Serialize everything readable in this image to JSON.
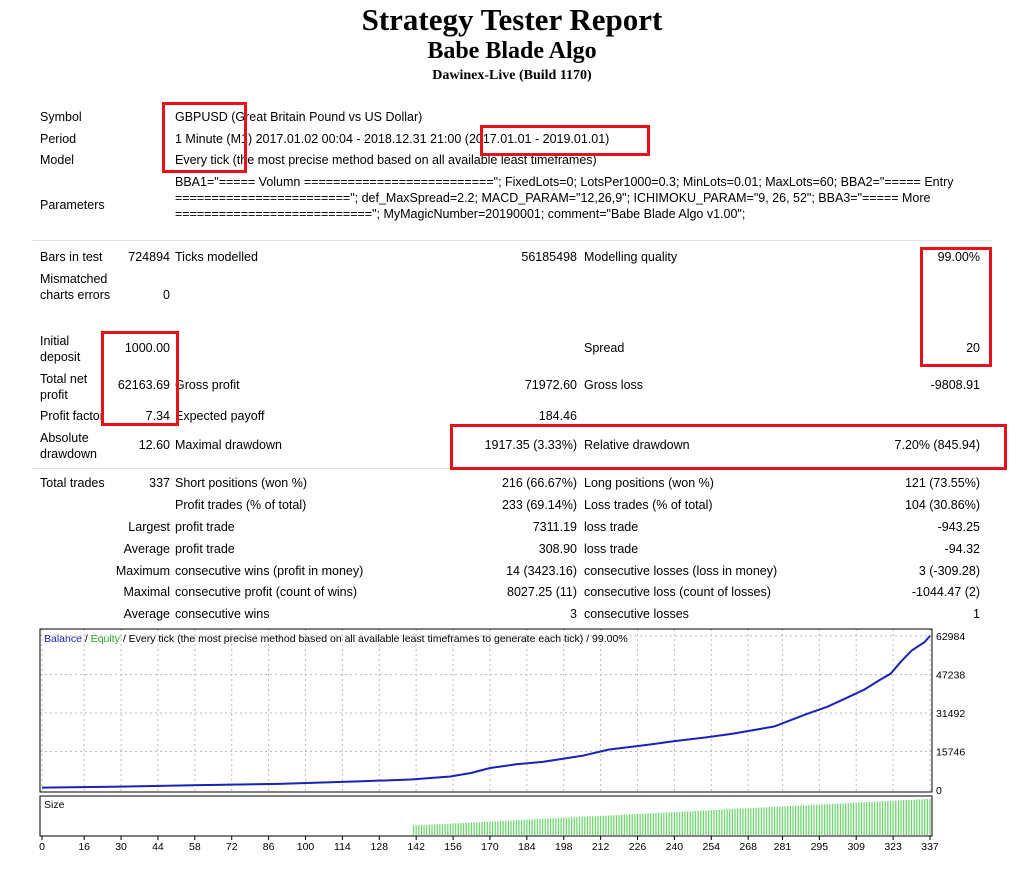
{
  "header": {
    "title": "Strategy Tester Report",
    "subtitle": "Babe Blade Algo",
    "server": "Dawinex-Live (Build 1170)"
  },
  "settings": {
    "symbol_label": "Symbol",
    "symbol_value": "GBPUSD (Great Britain Pound vs US Dollar)",
    "period_label": "Period",
    "period_value": "1 Minute (M1) 2017.01.02 00:04 - 2018.12.31 21:00 (2017.01.01 - 2019.01.01)",
    "model_label": "Model",
    "model_value": "Every tick (the most precise method based on all available least timeframes)",
    "parameters_label": "Parameters",
    "parameters_value": "BBA1=\"===== Volumn ==========================\"; FixedLots=0; LotsPer1000=0.3; MinLots=0.01; MaxLots=60; BBA2=\"===== Entry ========================\"; def_MaxSpread=2.2; MACD_PARAM=\"12,26,9\"; ICHIMOKU_PARAM=\"9, 26, 52\"; BBA3=\"===== More ===========================\"; MyMagicNumber=20190001; comment=\"Babe Blade Algo v1.00\";"
  },
  "stats": {
    "bars_label": "Bars in test",
    "bars_value": "724894",
    "ticks_label": "Ticks modelled",
    "ticks_value": "56185498",
    "quality_label": "Modelling quality",
    "quality_value": "99.00%",
    "mismatch_label": "Mismatched charts errors",
    "mismatch_value": "0",
    "deposit_label": "Initial deposit",
    "deposit_value": "1000.00",
    "spread_label": "Spread",
    "spread_value": "20",
    "netprofit_label": "Total net profit",
    "netprofit_value": "62163.69",
    "grossprofit_label": "Gross profit",
    "grossprofit_value": "71972.60",
    "grossloss_label": "Gross loss",
    "grossloss_value": "-9808.91",
    "pf_label": "Profit factor",
    "pf_value": "7.34",
    "payoff_label": "Expected payoff",
    "payoff_value": "184.46",
    "absdd_label": "Absolute drawdown",
    "absdd_value": "12.60",
    "maxdd_label": "Maximal drawdown",
    "maxdd_value": "1917.35 (3.33%)",
    "reldd_label": "Relative drawdown",
    "reldd_value": "7.20% (845.94)"
  },
  "trades": {
    "total_label": "Total trades",
    "total_value": "337",
    "short_label": "Short positions (won %)",
    "short_value": "216 (66.67%)",
    "long_label": "Long positions (won %)",
    "long_value": "121 (73.55%)",
    "profit_label": "Profit trades (% of total)",
    "profit_value": "233 (69.14%)",
    "loss_label": "Loss trades (% of total)",
    "loss_value": "104 (30.86%)",
    "largest_label": "Largest",
    "lp_label": "profit trade",
    "lp_value": "7311.19",
    "ll_label": "loss trade",
    "ll_value": "-943.25",
    "average_label": "Average",
    "ap_label": "profit trade",
    "ap_value": "308.90",
    "al_label": "loss trade",
    "al_value": "-94.32",
    "maximum_label": "Maximum",
    "mcw_label": "consecutive wins (profit in money)",
    "mcw_value": "14 (3423.16)",
    "mcl_label": "consecutive losses (loss in money)",
    "mcl_value": "3 (-309.28)",
    "maximal_label": "Maximal",
    "mcp_label": "consecutive profit (count of wins)",
    "mcp_value": "8027.25 (11)",
    "mcll_label": "consecutive loss (count of losses)",
    "mcll_value": "-1044.47 (2)",
    "average2_label": "Average",
    "acw_label": "consecutive wins",
    "acw_value": "3",
    "acl_label": "consecutive losses",
    "acl_value": "1"
  },
  "chart_data": {
    "type": "line",
    "legend_balance": "Balance",
    "legend_sep": " / ",
    "legend_equity": "Equity",
    "legend_rest": " / Every tick (the most precise method based on all available least timeframes to generate each tick) / 99.00%",
    "size_label": "Size",
    "colors": {
      "balance": "#1a23b8",
      "equity": "#22a822",
      "size": "#6fd66f"
    },
    "y_ticks": [
      "62984",
      "47238",
      "31492",
      "15746",
      "0"
    ],
    "ylim": [
      0,
      65000
    ],
    "x_ticks": [
      "0",
      "16",
      "30",
      "44",
      "58",
      "72",
      "86",
      "100",
      "114",
      "128",
      "142",
      "156",
      "170",
      "184",
      "198",
      "212",
      "226",
      "240",
      "254",
      "268",
      "281",
      "295",
      "309",
      "323",
      "337"
    ],
    "xlim": [
      0,
      337
    ],
    "series": [
      {
        "name": "Balance",
        "x": [
          0,
          30,
          60,
          90,
          120,
          140,
          155,
          163,
          170,
          180,
          190,
          205,
          215,
          230,
          240,
          252,
          262,
          270,
          278,
          284,
          290,
          298,
          305,
          312,
          318,
          322,
          326,
          330,
          335,
          337
        ],
        "values": [
          1000,
          1400,
          2000,
          2500,
          3500,
          4300,
          5500,
          7000,
          9000,
          10500,
          11500,
          14000,
          16500,
          18500,
          20000,
          21500,
          23000,
          24500,
          26000,
          28500,
          31000,
          34000,
          37500,
          41000,
          45000,
          47500,
          52500,
          57000,
          60500,
          62984
        ]
      }
    ],
    "size_series": {
      "start": 141,
      "end": 337,
      "min": 0.25,
      "max": 0.95
    }
  }
}
